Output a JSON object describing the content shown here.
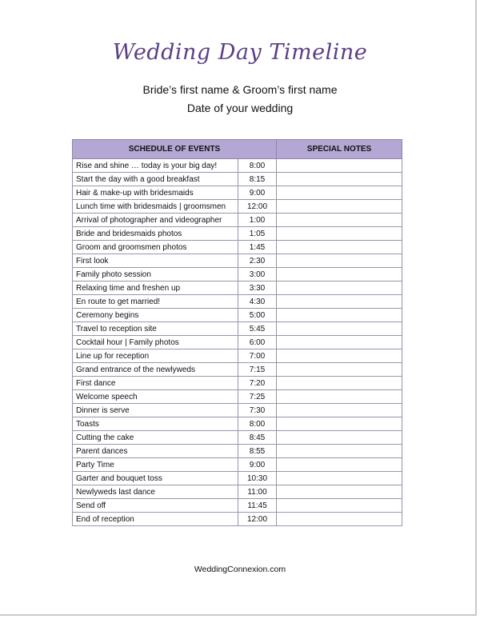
{
  "header": {
    "title": "Wedding Day Timeline",
    "names": "Bride’s first name & Groom’s first name",
    "date": "Date of your wedding"
  },
  "table": {
    "headers": [
      "SCHEDULE OF EVENTS",
      "SPECIAL NOTES"
    ],
    "rows": [
      [
        "Rise and shine … today is your big day!",
        "8:00"
      ],
      [
        "Start the day with a good breakfast",
        "8:15"
      ],
      [
        "Hair & make-up with bridesmaids",
        "9:00"
      ],
      [
        "Lunch time with bridesmaids | groomsmen",
        "12:00"
      ],
      [
        "Arrival of photographer and videographer",
        "1:00"
      ],
      [
        "Bride and bridesmaids photos",
        "1:05"
      ],
      [
        "Groom and groomsmen photos",
        "1:45"
      ],
      [
        "First look",
        "2:30"
      ],
      [
        "Family photo session",
        "3:00"
      ],
      [
        "Relaxing time and freshen up",
        "3:30"
      ],
      [
        "En route to get married!",
        "4:30"
      ],
      [
        "Ceremony begins",
        "5:00"
      ],
      [
        "Travel to reception site",
        "5:45"
      ],
      [
        "Cocktail hour | Family photos",
        "6:00"
      ],
      [
        "Line up for reception",
        "7:00"
      ],
      [
        "Grand entrance of the newlyweds",
        "7:15"
      ],
      [
        "First dance",
        "7:20"
      ],
      [
        "Welcome speech",
        "7:25"
      ],
      [
        "Dinner is serve",
        "7:30"
      ],
      [
        "Toasts",
        "8:00"
      ],
      [
        "Cutting the cake",
        "8:45"
      ],
      [
        "Parent dances",
        "8:55"
      ],
      [
        "Party Time",
        "9:00"
      ],
      [
        "Garter and bouquet toss",
        "10:30"
      ],
      [
        "Newlyweds last dance",
        "11:00"
      ],
      [
        "Send off",
        "11:45"
      ],
      [
        "End of reception",
        "12:00"
      ]
    ]
  },
  "footer": "WeddingConnexion.com"
}
